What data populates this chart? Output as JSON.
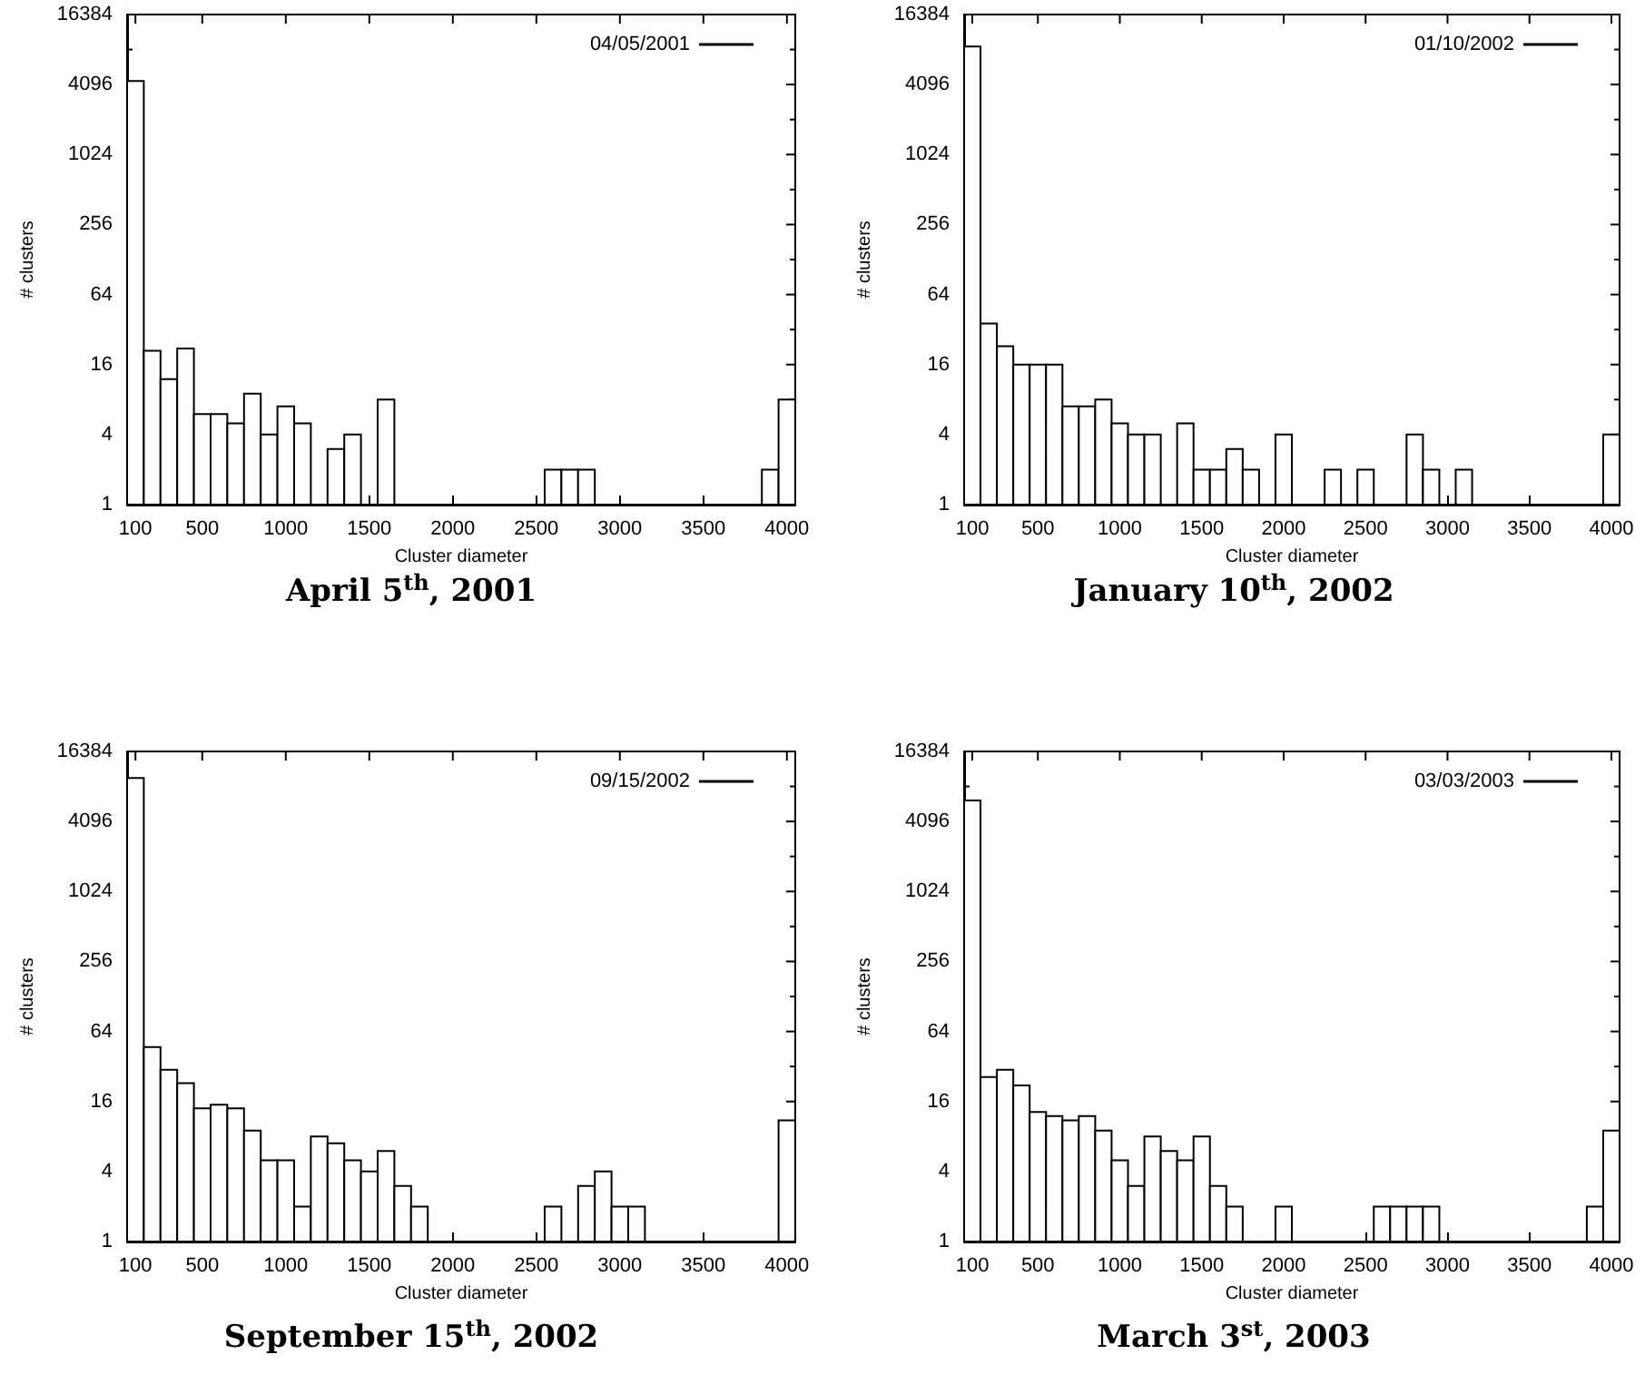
{
  "chart_data": [
    {
      "type": "histogram",
      "title": "April 5$^{th}$, 2001",
      "xlabel": "Cluster diameter",
      "ylabel": "# clusters",
      "legend": "top right",
      "log": "y",
      "grid": false,
      "bins": [
        50,
        150,
        250,
        350,
        450,
        550,
        650,
        750,
        850,
        950,
        1050,
        1150,
        1250,
        1350,
        1450,
        1550,
        1650,
        1750,
        1850,
        1950,
        2050,
        2150,
        2250,
        2350,
        2450,
        2550,
        2650,
        2750,
        2850,
        2950,
        3050,
        3150,
        3250,
        3350,
        3450,
        3550,
        3650,
        3750,
        3850,
        3950,
        4050
      ],
      "series": [
        {
          "name": "04/05/2001",
          "color": "#000000",
          "values": [
            4400,
            21,
            12,
            22,
            6,
            6,
            5,
            9,
            4,
            7,
            5,
            null,
            3,
            4,
            null,
            8,
            null,
            null,
            null,
            null,
            null,
            null,
            null,
            null,
            null,
            2,
            2,
            2,
            null,
            null,
            null,
            null,
            null,
            null,
            null,
            null,
            null,
            null,
            2,
            8
          ]
        }
      ],
      "xlim": [
        50,
        4050
      ],
      "xticks": [
        100,
        500,
        1000,
        1500,
        2000,
        2500,
        3000,
        3500,
        4000
      ],
      "ylim": [
        1,
        16384
      ],
      "yticks": [
        1,
        {
          "value": 2,
          "label": null
        },
        4,
        {
          "value": 8,
          "label": null
        },
        16,
        {
          "value": 32,
          "label": null
        },
        64,
        {
          "value": 128,
          "label": null
        },
        256,
        {
          "value": 512,
          "label": null
        },
        1024,
        {
          "value": 2048,
          "label": null
        },
        4096,
        {
          "value": 8192,
          "label": null
        },
        16384
      ]
    },
    {
      "type": "histogram",
      "title": "January 10$^{th}$, 2002",
      "xlabel": "Cluster diameter",
      "ylabel": "# clusters",
      "legend": "top right",
      "log": "y",
      "grid": false,
      "bins": [
        50,
        150,
        250,
        350,
        450,
        550,
        650,
        750,
        850,
        950,
        1050,
        1150,
        1250,
        1350,
        1450,
        1550,
        1650,
        1750,
        1850,
        1950,
        2050,
        2150,
        2250,
        2350,
        2450,
        2550,
        2650,
        2750,
        2850,
        2950,
        3050,
        3150,
        3250,
        3350,
        3450,
        3550,
        3650,
        3750,
        3850,
        3950,
        4050
      ],
      "series": [
        {
          "name": "01/10/2002",
          "color": "#000000",
          "values": [
            8700,
            36,
            23,
            16,
            16,
            16,
            7,
            7,
            8,
            5,
            4,
            4,
            null,
            5,
            2,
            2,
            3,
            2,
            null,
            4,
            null,
            null,
            2,
            null,
            2,
            null,
            null,
            4,
            2,
            null,
            2,
            null,
            null,
            null,
            null,
            null,
            null,
            null,
            null,
            4
          ]
        }
      ],
      "xlim": [
        50,
        4050
      ],
      "xticks": [
        100,
        500,
        1000,
        1500,
        2000,
        2500,
        3000,
        3500,
        4000
      ],
      "ylim": [
        1,
        16384
      ],
      "yticks": [
        1,
        {
          "value": 2,
          "label": null
        },
        4,
        {
          "value": 8,
          "label": null
        },
        16,
        {
          "value": 32,
          "label": null
        },
        64,
        {
          "value": 128,
          "label": null
        },
        256,
        {
          "value": 512,
          "label": null
        },
        1024,
        {
          "value": 2048,
          "label": null
        },
        4096,
        {
          "value": 8192,
          "label": null
        },
        16384
      ]
    },
    {
      "type": "histogram",
      "title": "September 15$^{th}$, 2002",
      "xlabel": "Cluster diameter",
      "ylabel": "# clusters",
      "legend": "top right",
      "log": "y",
      "grid": false,
      "bins": [
        50,
        150,
        250,
        350,
        450,
        550,
        650,
        750,
        850,
        950,
        1050,
        1150,
        1250,
        1350,
        1450,
        1550,
        1650,
        1750,
        1850,
        1950,
        2050,
        2150,
        2250,
        2350,
        2450,
        2550,
        2650,
        2750,
        2850,
        2950,
        3050,
        3150,
        3250,
        3350,
        3450,
        3550,
        3650,
        3750,
        3850,
        3950,
        4050
      ],
      "series": [
        {
          "name": "09/15/2002",
          "color": "#000000",
          "values": [
            9700,
            47,
            30,
            23,
            14,
            15,
            14,
            9,
            5,
            5,
            2,
            8,
            7,
            5,
            4,
            6,
            3,
            2,
            null,
            null,
            null,
            null,
            null,
            null,
            null,
            2,
            null,
            3,
            4,
            2,
            2,
            null,
            null,
            null,
            null,
            null,
            null,
            null,
            null,
            11
          ]
        }
      ],
      "xlim": [
        50,
        4050
      ],
      "xticks": [
        100,
        500,
        1000,
        1500,
        2000,
        2500,
        3000,
        3500,
        4000
      ],
      "ylim": [
        1,
        16384
      ],
      "yticks": [
        1,
        {
          "value": 2,
          "label": null
        },
        4,
        {
          "value": 8,
          "label": null
        },
        16,
        {
          "value": 32,
          "label": null
        },
        64,
        {
          "value": 128,
          "label": null
        },
        256,
        {
          "value": 512,
          "label": null
        },
        1024,
        {
          "value": 2048,
          "label": null
        },
        4096,
        {
          "value": 8192,
          "label": null
        },
        16384
      ]
    },
    {
      "type": "histogram",
      "title": "March 3$^{st}$, 2003",
      "xlabel": "Cluster diameter",
      "ylabel": "# clusters",
      "legend": "top right",
      "log": "y",
      "grid": false,
      "bins": [
        50,
        150,
        250,
        350,
        450,
        550,
        650,
        750,
        850,
        950,
        1050,
        1150,
        1250,
        1350,
        1450,
        1550,
        1650,
        1750,
        1850,
        1950,
        2050,
        2150,
        2250,
        2350,
        2450,
        2550,
        2650,
        2750,
        2850,
        2950,
        3050,
        3150,
        3250,
        3350,
        3450,
        3550,
        3650,
        3750,
        3850,
        3950,
        4050
      ],
      "series": [
        {
          "name": "03/03/2003",
          "color": "#000000",
          "values": [
            6200,
            26,
            30,
            22,
            13,
            12,
            11,
            12,
            9,
            5,
            3,
            8,
            6,
            5,
            8,
            3,
            2,
            null,
            null,
            2,
            null,
            null,
            null,
            null,
            null,
            2,
            2,
            2,
            2,
            null,
            null,
            null,
            null,
            null,
            null,
            null,
            null,
            null,
            2,
            9
          ]
        }
      ],
      "xlim": [
        50,
        4050
      ],
      "xticks": [
        100,
        500,
        1000,
        1500,
        2000,
        2500,
        3000,
        3500,
        4000
      ],
      "ylim": [
        1,
        16384
      ],
      "yticks": [
        1,
        {
          "value": 2,
          "label": null
        },
        4,
        {
          "value": 8,
          "label": null
        },
        16,
        {
          "value": 32,
          "label": null
        },
        64,
        {
          "value": 128,
          "label": null
        },
        256,
        {
          "value": 512,
          "label": null
        },
        1024,
        {
          "value": 2048,
          "label": null
        },
        4096,
        {
          "value": 8192,
          "label": null
        },
        16384
      ]
    }
  ]
}
